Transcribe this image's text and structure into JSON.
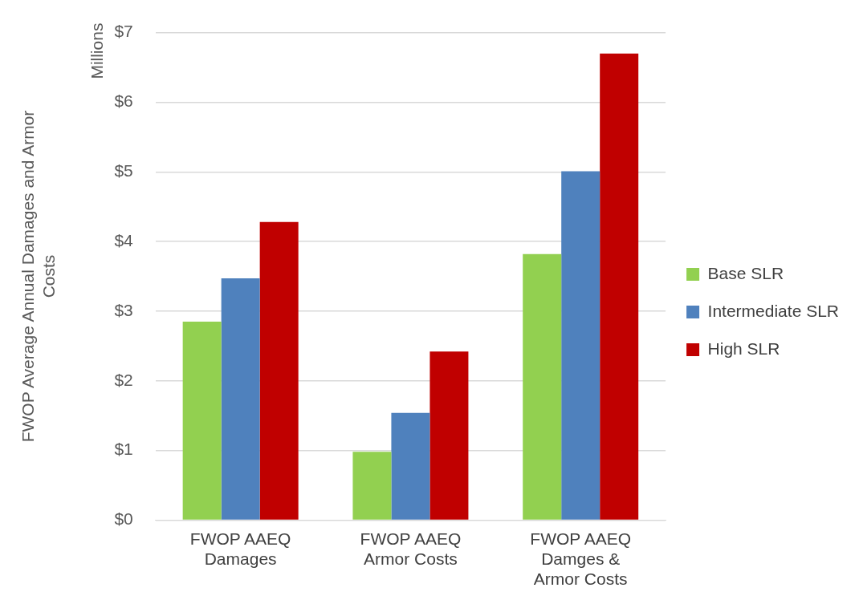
{
  "chart_data": {
    "type": "bar",
    "ylabel": "FWOP Average Annual Damages and Armor Costs",
    "annotations": [
      "Millions"
    ],
    "categories": [
      "FWOP AAEQ Damages",
      "FWOP AAEQ Armor Costs",
      "FWOP AAEQ Damges & Armor Costs"
    ],
    "series": [
      {
        "name": "Base SLR",
        "color": "#92d050",
        "values": [
          2.85,
          0.98,
          3.82
        ]
      },
      {
        "name": "Intermediate SLR",
        "color": "#4f81bd",
        "values": [
          3.47,
          1.54,
          5.01
        ]
      },
      {
        "name": "High SLR",
        "color": "#c00000",
        "values": [
          4.28,
          2.42,
          6.7
        ]
      }
    ],
    "ylim": [
      0,
      7
    ],
    "yticks": [
      {
        "value": 0,
        "label": "$0"
      },
      {
        "value": 1,
        "label": "$1"
      },
      {
        "value": 2,
        "label": "$2"
      },
      {
        "value": 3,
        "label": "$3"
      },
      {
        "value": 4,
        "label": "$4"
      },
      {
        "value": 5,
        "label": "$5"
      },
      {
        "value": 6,
        "label": "$6"
      },
      {
        "value": 7,
        "label": "$7"
      }
    ],
    "grid": "y",
    "legend": "right"
  }
}
